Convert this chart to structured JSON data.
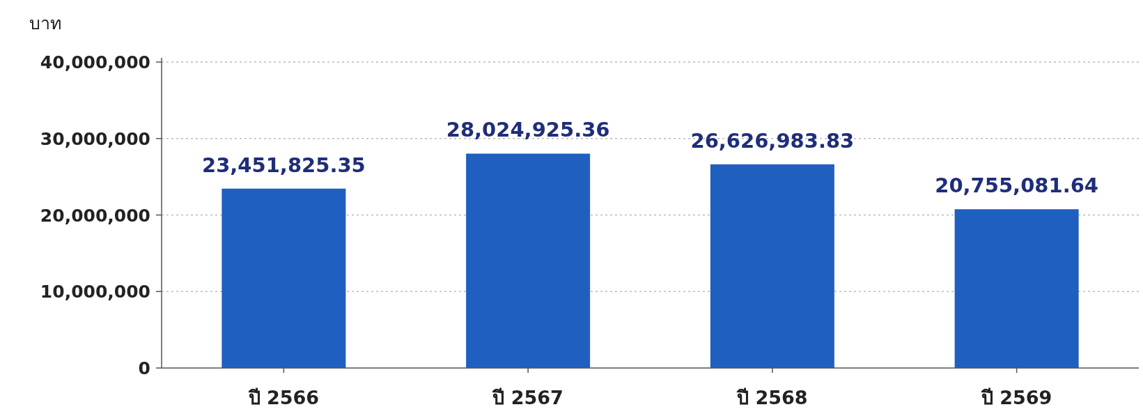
{
  "chart_data": {
    "type": "bar",
    "ylabel": "บาท",
    "categories": [
      "ปี 2566",
      "ปี 2567",
      "ปี 2568",
      "ปี 2569"
    ],
    "values": [
      23451825.35,
      28024925.36,
      26626983.83,
      20755081.64
    ],
    "value_labels": [
      "23,451,825.35",
      "28,024,925.36",
      "26,626,983.83",
      "20,755,081.64"
    ],
    "color": "#1f5fbf",
    "ylim": [
      0,
      40000000
    ],
    "yticks": [
      {
        "value": 0,
        "label": "0"
      },
      {
        "value": 10000000,
        "label": "10,000,000"
      },
      {
        "value": 20000000,
        "label": "20,000,000"
      },
      {
        "value": 30000000,
        "label": "30,000,000"
      },
      {
        "value": 40000000,
        "label": "40,000,000"
      }
    ],
    "grid": "y"
  }
}
